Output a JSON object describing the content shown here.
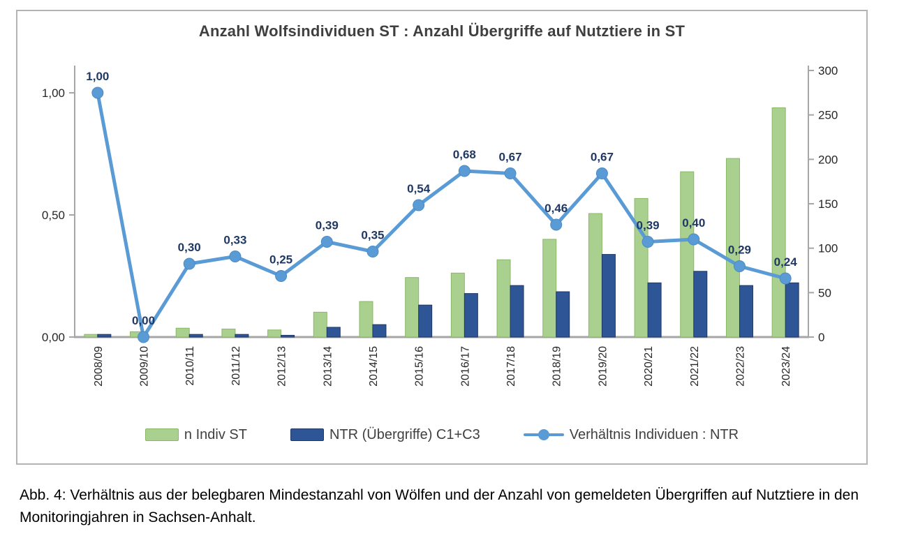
{
  "figure": {
    "title": "Anzahl Wolfsindividuen ST : Anzahl Übergriffe auf Nutztiere in ST",
    "caption": "Abb. 4: Verhältnis aus der belegbaren Mindestanzahl von Wölfen und der Anzahl von gemeldeten Übergriffen auf Nutztiere in den Monitoringjahren in Sachsen-Anhalt."
  },
  "chart_data": {
    "type": "combo-bar-line",
    "title": "Anzahl Wolfsindividuen ST : Anzahl Übergriffe auf Nutztiere in ST",
    "categories": [
      "2008/09",
      "2009/10",
      "2010/11",
      "2011/12",
      "2012/13",
      "2013/14",
      "2014/15",
      "2015/16",
      "2016/17",
      "2017/18",
      "2018/19",
      "2019/20",
      "2020/21",
      "2021/22",
      "2022/23",
      "2023/24"
    ],
    "series": [
      {
        "name": "n Indiv ST",
        "type": "bar",
        "axis": "right",
        "color": "#A9D08E",
        "border_color": "#8ab866",
        "values": [
          3,
          6,
          10,
          9,
          8,
          28,
          40,
          67,
          72,
          87,
          110,
          139,
          156,
          186,
          201,
          258
        ]
      },
      {
        "name": "NTR (Übergriffe) C1+C3",
        "type": "bar",
        "axis": "right",
        "color": "#2E5596",
        "border_color": "#1F3864",
        "values": [
          3,
          0,
          3,
          3,
          2,
          11,
          14,
          36,
          49,
          58,
          51,
          93,
          61,
          74,
          58,
          61
        ]
      },
      {
        "name": "Verhältnis Individuen : NTR",
        "type": "line",
        "axis": "left",
        "color": "#5B9BD5",
        "values": [
          1.0,
          0.0,
          0.3,
          0.33,
          0.25,
          0.39,
          0.35,
          0.54,
          0.68,
          0.67,
          0.46,
          0.67,
          0.39,
          0.4,
          0.29,
          0.24
        ],
        "point_labels": [
          "1,00",
          "0,00",
          "0,30",
          "0,33",
          "0,25",
          "0,39",
          "0,35",
          "0,54",
          "0,68",
          "0,67",
          "0,46",
          "0,67",
          "0,39",
          "0,40",
          "0,29",
          "0,24"
        ],
        "label_color": "#1F3864"
      }
    ],
    "left_axis": {
      "tick_labels": [
        "0,00",
        "0,50",
        "1,00"
      ],
      "tick_values": [
        0,
        0.5,
        1.0
      ],
      "range": [
        0,
        1.1
      ]
    },
    "right_axis": {
      "tick_labels": [
        "0",
        "50",
        "100",
        "150",
        "200",
        "250",
        "300"
      ],
      "tick_values": [
        0,
        50,
        100,
        150,
        200,
        250,
        300
      ],
      "range": [
        0,
        300
      ]
    },
    "grid": false,
    "legend_position": "bottom",
    "axis_color": "#A6A6A6",
    "text_color": "#262626"
  }
}
